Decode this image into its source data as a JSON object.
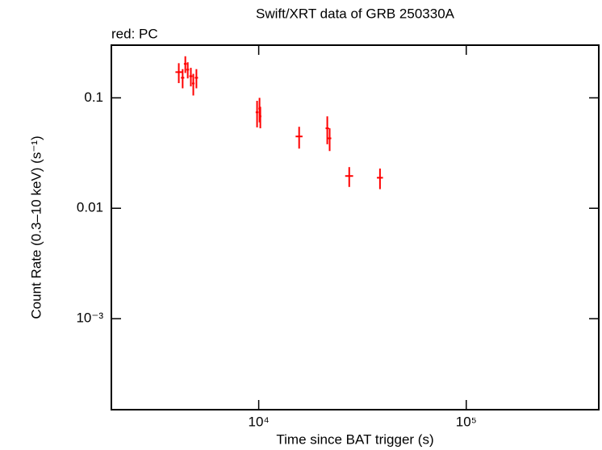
{
  "chart_data": {
    "type": "scatter",
    "title": "Swift/XRT data of GRB 250330A",
    "subtitle": "red: PC",
    "x_label": "Time since BAT trigger (s)",
    "y_label": "Count Rate (0.3–10 keV) (s⁻¹)",
    "log_x": true,
    "log_y": true,
    "xlim": [
      1950,
      435000
    ],
    "ylim": [
      0.00015,
      0.3
    ],
    "xticks": [
      {
        "value": 10000,
        "label": "10⁴"
      },
      {
        "value": 100000,
        "label": "10⁵"
      }
    ],
    "yticks": [
      {
        "value": 0.001,
        "label": "10⁻³"
      },
      0.01,
      0.1
    ],
    "series": [
      {
        "name": "PC",
        "color": "#ff0000",
        "x": [
          4120,
          4300,
          4430,
          4550,
          4710,
          4840,
          5010,
          9820,
          10090,
          10180,
          15660,
          21400,
          21970,
          27300,
          38400
        ],
        "values": [
          0.171,
          0.152,
          0.203,
          0.18,
          0.157,
          0.135,
          0.152,
          0.074,
          0.08,
          0.068,
          0.0447,
          0.053,
          0.043,
          0.0196,
          0.0189
        ],
        "xerr": [
          150,
          80,
          70,
          70,
          80,
          70,
          90,
          150,
          120,
          120,
          600,
          400,
          400,
          1200,
          1300
        ],
        "yerr": [
          0.035,
          0.03,
          0.035,
          0.03,
          0.03,
          0.03,
          0.03,
          0.02,
          0.02,
          0.015,
          0.01,
          0.015,
          0.01,
          0.004,
          0.004
        ]
      }
    ]
  }
}
